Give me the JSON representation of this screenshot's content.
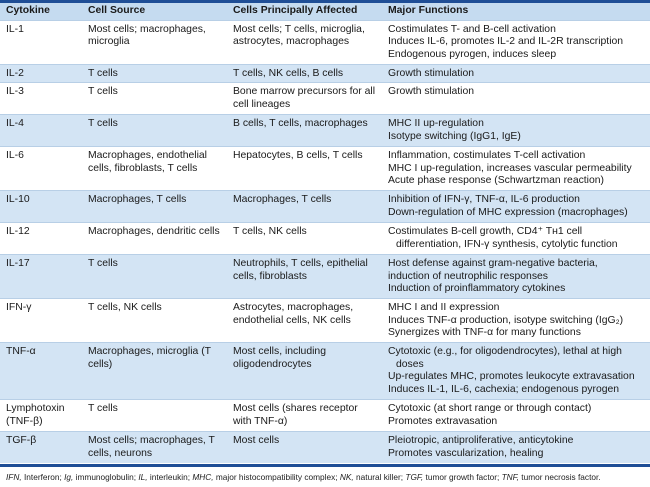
{
  "headers": [
    "Cytokine",
    "Cell Source",
    "Cells Principally Affected",
    "Major Functions"
  ],
  "rows": [
    {
      "cytokine": "IL-1",
      "source": "Most cells; macrophages, microglia",
      "affected": "Most cells; T cells, microglia, astrocytes, macrophages",
      "functions": [
        "Costimulates T- and B-cell activation",
        "Induces IL-6, promotes IL-2 and IL-2R transcription",
        "Endogenous pyrogen, induces sleep"
      ]
    },
    {
      "cytokine": "IL-2",
      "source": "T cells",
      "affected": "T cells, NK cells, B cells",
      "functions": [
        "Growth stimulation"
      ]
    },
    {
      "cytokine": "IL-3",
      "source": "T cells",
      "affected": "Bone marrow precursors for all cell lineages",
      "functions": [
        "Growth stimulation"
      ]
    },
    {
      "cytokine": "IL-4",
      "source": "T cells",
      "affected": "B cells, T cells, macrophages",
      "functions": [
        "MHC II up-regulation",
        "Isotype switching (IgG1, IgE)"
      ]
    },
    {
      "cytokine": "IL-6",
      "source": "Macrophages, endothelial cells, fibroblasts, T cells",
      "affected": "Hepatocytes, B cells, T cells",
      "functions": [
        "Inflammation, costimulates T-cell activation",
        "MHC I up-regulation, increases vascular permeability",
        "Acute phase response (Schwartzman reaction)"
      ]
    },
    {
      "cytokine": "IL-10",
      "source": "Macrophages, T cells",
      "affected": "Macrophages, T cells",
      "functions": [
        "Inhibition of IFN-γ, TNF-α, IL-6 production",
        "Down-regulation of MHC expression (macrophages)"
      ]
    },
    {
      "cytokine": "IL-12",
      "source": "Macrophages, dendritic cells",
      "affected": "T cells, NK cells",
      "functions": [
        "Costimulates B-cell growth, CD4⁺ Tʜ1 cell differentiation, IFN-γ synthesis, cytolytic function"
      ]
    },
    {
      "cytokine": "IL-17",
      "source": "T cells",
      "affected": "Neutrophils, T cells, epithelial cells, fibroblasts",
      "functions": [
        "Host defense against gram-negative bacteria,",
        "induction of neutrophilic responses",
        "Induction of proinflammatory cytokines"
      ]
    },
    {
      "cytokine": "IFN-γ",
      "source": "T cells, NK cells",
      "affected": "Astrocytes, macrophages, endothelial cells, NK cells",
      "functions": [
        "MHC I and II expression",
        "Induces TNF-α production, isotype switching (IgG₂)",
        "Synergizes with TNF-α for many functions"
      ]
    },
    {
      "cytokine": "TNF-α",
      "source": "Macrophages, microglia (T cells)",
      "affected": "Most cells, including oligodendrocytes",
      "functions": [
        "Cytotoxic (e.g., for oligodendrocytes), lethal at high doses",
        "Up-regulates MHC, promotes leukocyte extravasation",
        "Induces IL-1, IL-6, cachexia; endogenous pyrogen"
      ]
    },
    {
      "cytokine": "Lymphotoxin (TNF-β)",
      "source": "T cells",
      "affected": "Most cells (shares receptor with TNF-α)",
      "functions": [
        "Cytotoxic (at short range or through contact)",
        "Promotes extravasation"
      ]
    },
    {
      "cytokine": "TGF-β",
      "source": "Most cells; macrophages, T cells, neurons",
      "affected": "Most cells",
      "functions": [
        "Pleiotropic, antiproliferative, anticytokine",
        "Promotes vascularization, healing"
      ]
    }
  ],
  "footnote": [
    {
      "abbr": "IFN,",
      "def": " Interferon; "
    },
    {
      "abbr": "Ig,",
      "def": " immunoglobulin; "
    },
    {
      "abbr": "IL,",
      "def": " interleukin; "
    },
    {
      "abbr": "MHC,",
      "def": " major histocompatibility complex; "
    },
    {
      "abbr": "NK,",
      "def": " natural killer; "
    },
    {
      "abbr": "TGF,",
      "def": " tumor growth factor; "
    },
    {
      "abbr": "TNF,",
      "def": " tumor necrosis factor."
    }
  ]
}
